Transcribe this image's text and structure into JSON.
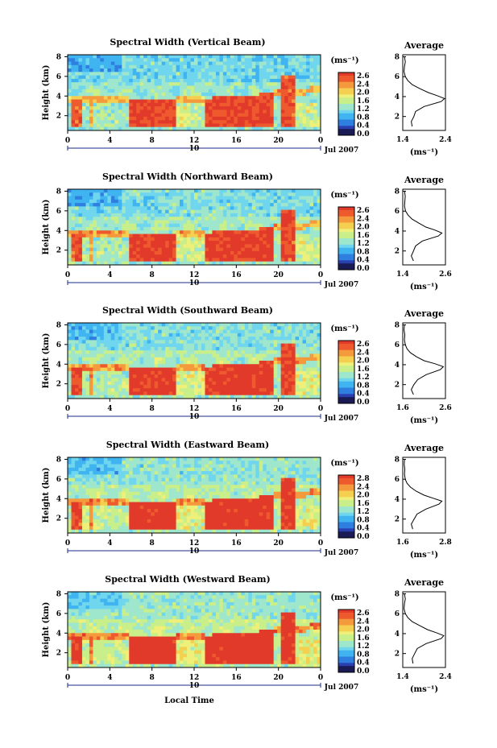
{
  "chart_data": [
    {
      "type": "heatmap",
      "title": "Spectral Width (Vertical Beam)",
      "ylabel": "Height (km)",
      "yticks": [
        "2",
        "4",
        "6",
        "8"
      ],
      "xticks": [
        "0",
        "4",
        "8",
        "12",
        "16",
        "20",
        "0"
      ],
      "date_marker": "10",
      "date_label": "Jul 2007",
      "colorbar": {
        "unit": "(ms⁻¹)",
        "ticks": [
          "2.6",
          "2.4",
          "2.0",
          "1.6",
          "1.2",
          "0.8",
          "0.4",
          "0.0"
        ]
      },
      "average": {
        "title": "Average",
        "xticks": [
          "1.4",
          "2.4"
        ],
        "xlabel": "(ms⁻¹)",
        "yticks": [
          "2",
          "4",
          "6",
          "8"
        ],
        "xlim": [
          1.4,
          2.4
        ],
        "profile": [
          [
            1.62,
            1.0
          ],
          [
            1.6,
            1.5
          ],
          [
            1.66,
            2.0
          ],
          [
            1.7,
            2.5
          ],
          [
            1.9,
            3.0
          ],
          [
            2.3,
            3.5
          ],
          [
            2.38,
            3.8
          ],
          [
            2.2,
            4.1
          ],
          [
            2.0,
            4.4
          ],
          [
            1.8,
            4.8
          ],
          [
            1.62,
            5.2
          ],
          [
            1.52,
            5.6
          ],
          [
            1.46,
            6.0
          ],
          [
            1.43,
            6.5
          ],
          [
            1.44,
            7.0
          ],
          [
            1.46,
            7.5
          ],
          [
            1.44,
            8.0
          ]
        ]
      }
    },
    {
      "type": "heatmap",
      "title": "Spectral Width (Northward Beam)",
      "ylabel": "Height (km)",
      "yticks": [
        "2",
        "4",
        "6",
        "8"
      ],
      "xticks": [
        "0",
        "4",
        "8",
        "12",
        "16",
        "20",
        "0"
      ],
      "date_marker": "10",
      "date_label": "Jul 2007",
      "colorbar": {
        "unit": "(ms⁻¹)",
        "ticks": [
          "2.6",
          "2.4",
          "2.0",
          "1.6",
          "1.2",
          "0.8",
          "0.4",
          "0.0"
        ]
      },
      "average": {
        "title": "Average",
        "xticks": [
          "1.4",
          "2.6"
        ],
        "xlabel": "(ms⁻¹)",
        "yticks": [
          "2",
          "4",
          "6",
          "8"
        ],
        "xlim": [
          1.4,
          2.6
        ],
        "profile": [
          [
            1.7,
            1.0
          ],
          [
            1.64,
            1.5
          ],
          [
            1.7,
            2.0
          ],
          [
            1.76,
            2.5
          ],
          [
            1.95,
            3.0
          ],
          [
            2.4,
            3.5
          ],
          [
            2.5,
            3.8
          ],
          [
            2.3,
            4.1
          ],
          [
            2.05,
            4.4
          ],
          [
            1.85,
            4.8
          ],
          [
            1.66,
            5.2
          ],
          [
            1.55,
            5.6
          ],
          [
            1.48,
            6.0
          ],
          [
            1.45,
            6.5
          ],
          [
            1.46,
            7.0
          ],
          [
            1.47,
            7.5
          ],
          [
            1.45,
            8.0
          ]
        ]
      }
    },
    {
      "type": "heatmap",
      "title": "Spectral Width (Southward Beam)",
      "ylabel": "Height (km)",
      "yticks": [
        "2",
        "4",
        "6",
        "8"
      ],
      "xticks": [
        "0",
        "4",
        "8",
        "12",
        "16",
        "20",
        "0"
      ],
      "date_marker": "10",
      "date_label": "Jul 2007",
      "colorbar": {
        "unit": "(ms⁻¹)",
        "ticks": [
          "2.6",
          "2.4",
          "2.0",
          "1.6",
          "1.2",
          "0.8",
          "0.4",
          "0.0"
        ]
      },
      "average": {
        "title": "Average",
        "xticks": [
          "1.6",
          "2.6"
        ],
        "xlabel": "(ms⁻¹)",
        "yticks": [
          "2",
          "4",
          "6",
          "8"
        ],
        "xlim": [
          1.6,
          2.6
        ],
        "profile": [
          [
            1.85,
            1.0
          ],
          [
            1.8,
            1.5
          ],
          [
            1.86,
            2.0
          ],
          [
            1.95,
            2.5
          ],
          [
            2.15,
            3.0
          ],
          [
            2.48,
            3.5
          ],
          [
            2.55,
            3.8
          ],
          [
            2.35,
            4.1
          ],
          [
            2.1,
            4.4
          ],
          [
            1.92,
            4.8
          ],
          [
            1.78,
            5.2
          ],
          [
            1.7,
            5.6
          ],
          [
            1.66,
            6.0
          ],
          [
            1.64,
            6.5
          ],
          [
            1.65,
            7.0
          ],
          [
            1.63,
            7.5
          ],
          [
            1.64,
            8.0
          ]
        ]
      }
    },
    {
      "type": "heatmap",
      "title": "Spectral Width (Eastward Beam)",
      "ylabel": "Height (km)",
      "yticks": [
        "2",
        "4",
        "6",
        "8"
      ],
      "xticks": [
        "0",
        "4",
        "8",
        "12",
        "16",
        "20",
        "0"
      ],
      "date_marker": "10",
      "date_label": "Jul 2007",
      "colorbar": {
        "unit": "(ms⁻¹)",
        "ticks": [
          "2.8",
          "2.4",
          "2.0",
          "1.6",
          "1.2",
          "0.8",
          "0.4",
          "0.0"
        ]
      },
      "average": {
        "title": "Average",
        "xticks": [
          "1.6",
          "2.8"
        ],
        "xlabel": "(ms⁻¹)",
        "yticks": [
          "2",
          "4",
          "6",
          "8"
        ],
        "xlim": [
          1.6,
          2.8
        ],
        "profile": [
          [
            1.88,
            1.0
          ],
          [
            1.84,
            1.5
          ],
          [
            1.92,
            2.0
          ],
          [
            2.0,
            2.5
          ],
          [
            2.25,
            3.0
          ],
          [
            2.62,
            3.5
          ],
          [
            2.7,
            3.8
          ],
          [
            2.45,
            4.1
          ],
          [
            2.2,
            4.4
          ],
          [
            1.98,
            4.8
          ],
          [
            1.82,
            5.2
          ],
          [
            1.72,
            5.6
          ],
          [
            1.67,
            6.0
          ],
          [
            1.65,
            6.5
          ],
          [
            1.66,
            7.0
          ],
          [
            1.64,
            7.5
          ],
          [
            1.65,
            8.0
          ]
        ]
      }
    },
    {
      "type": "heatmap",
      "title": "Spectral Width (Westward Beam)",
      "ylabel": "Height (km)",
      "yticks": [
        "2",
        "4",
        "6",
        "8"
      ],
      "xticks": [
        "0",
        "4",
        "8",
        "12",
        "16",
        "20",
        "0"
      ],
      "date_marker": "10",
      "date_label": "Jul 2007",
      "xlabel": "Local Time",
      "colorbar": {
        "unit": "(ms⁻¹)",
        "ticks": [
          "2.6",
          "2.4",
          "2.0",
          "1.6",
          "1.2",
          "0.8",
          "0.4",
          "0.0"
        ]
      },
      "average": {
        "title": "Average",
        "xticks": [
          "1.4",
          "2.4"
        ],
        "xlabel": "(ms⁻¹)",
        "yticks": [
          "2",
          "4",
          "6",
          "8"
        ],
        "xlim": [
          1.4,
          2.4
        ],
        "profile": [
          [
            1.64,
            1.0
          ],
          [
            1.62,
            1.5
          ],
          [
            1.68,
            2.0
          ],
          [
            1.74,
            2.5
          ],
          [
            1.95,
            3.0
          ],
          [
            2.3,
            3.5
          ],
          [
            2.36,
            3.8
          ],
          [
            2.18,
            4.1
          ],
          [
            1.98,
            4.4
          ],
          [
            1.8,
            4.8
          ],
          [
            1.62,
            5.2
          ],
          [
            1.52,
            5.6
          ],
          [
            1.46,
            6.0
          ],
          [
            1.43,
            6.5
          ],
          [
            1.44,
            7.0
          ],
          [
            1.46,
            7.5
          ],
          [
            1.44,
            8.0
          ]
        ]
      }
    }
  ]
}
